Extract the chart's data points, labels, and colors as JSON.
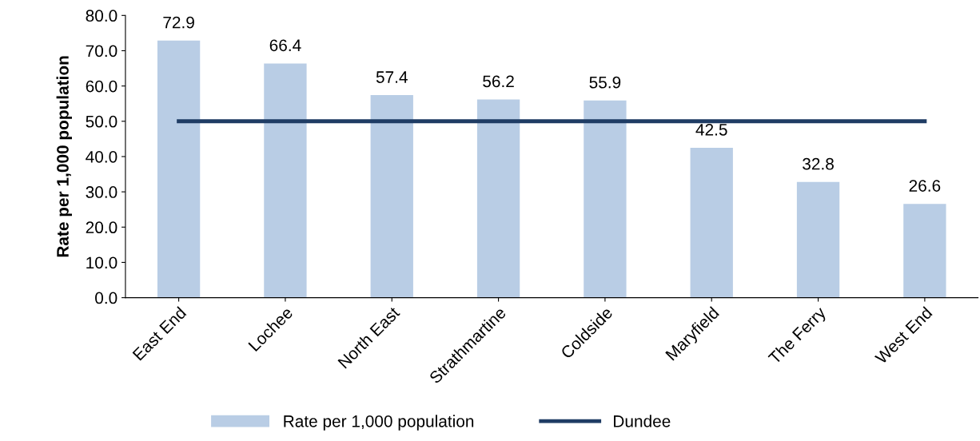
{
  "chart_data": {
    "type": "bar",
    "ylabel": "Rate per 1,000 population",
    "categories": [
      "East End",
      "Lochee",
      "North East",
      "Strathmartine",
      "Coldside",
      "Maryfield",
      "The Ferry",
      "West End"
    ],
    "series": [
      {
        "name": "Rate per 1,000 population",
        "color": "#b9cde5",
        "values": [
          72.9,
          66.4,
          57.4,
          56.2,
          55.9,
          42.5,
          32.8,
          26.6
        ],
        "value_labels": [
          "72.9",
          "66.4",
          "57.4",
          "56.2",
          "55.9",
          "42.5",
          "32.8",
          "26.6"
        ]
      },
      {
        "name": "Dundee",
        "type": "line",
        "color": "#1f3c64",
        "values": [
          50.0,
          50.0,
          50.0,
          50.0,
          50.0,
          50.0,
          50.0,
          50.0
        ]
      }
    ],
    "ylim": [
      0.0,
      80.0
    ],
    "yticks": [
      {
        "value": 0,
        "label": "0.0"
      },
      {
        "value": 10,
        "label": "10.0"
      },
      {
        "value": 20,
        "label": "20.0"
      },
      {
        "value": 30,
        "label": "30.0"
      },
      {
        "value": 40,
        "label": "40.0"
      },
      {
        "value": 50,
        "label": "50.0"
      },
      {
        "value": 60,
        "label": "60.0"
      },
      {
        "value": 70,
        "label": "70.0"
      },
      {
        "value": 80,
        "label": "80.0"
      }
    ],
    "grid": false,
    "legend": "bottom",
    "marker": "none",
    "line_style": "solid"
  }
}
